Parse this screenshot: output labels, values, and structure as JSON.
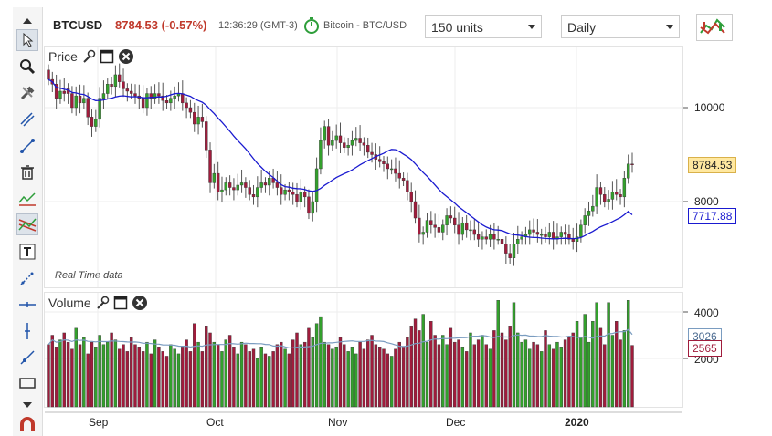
{
  "header": {
    "symbol": "BTCUSD",
    "price_change": "8784.53 (-0.57%)",
    "time": "12:36:29 (GMT-3)",
    "instrument": "Bitcoin - BTC/USD",
    "units_select": "150 units",
    "period_select": "Daily"
  },
  "toolbar": {
    "items": [
      "collapse-up",
      "pointer",
      "zoom",
      "tools",
      "parallel-lines",
      "line",
      "trash",
      "indicator",
      "channel",
      "text",
      "trendline",
      "horizontal-line",
      "vertical-line",
      "ray",
      "rectangle",
      "expand-down",
      "magnet"
    ]
  },
  "price_pane": {
    "title": "Price",
    "footnote": "Real Time data",
    "y_ticks": [
      "10000",
      "8000"
    ],
    "last_price_tag": "8784.53",
    "ma_tag": "7717.88"
  },
  "volume_pane": {
    "title": "Volume",
    "y_ticks": [
      "4000",
      "2000"
    ],
    "ma_tag": "3026",
    "last_volume_tag": "2565"
  },
  "x_axis": [
    "Sep",
    "Oct",
    "Nov",
    "Dec",
    "2020"
  ],
  "colors": {
    "up": "#33a02c",
    "down": "#a01c3c",
    "ma_price": "#1a1ad0",
    "ma_volume": "#7a9cc0",
    "price_change": "#c0392b"
  },
  "chart_data": {
    "type": "candlestick",
    "x_labels": [
      "Sep",
      "Oct",
      "Nov",
      "Dec",
      "2020"
    ],
    "y_range_price": [
      7000,
      11500
    ],
    "y_ticks_price": [
      10000,
      8000
    ],
    "close": [
      10600,
      10500,
      10200,
      10350,
      10300,
      10300,
      10000,
      10250,
      10100,
      10200,
      9800,
      9600,
      9750,
      10200,
      10300,
      10500,
      10450,
      10700,
      10550,
      10400,
      10350,
      10300,
      10250,
      10200,
      10000,
      10300,
      10200,
      10300,
      10250,
      10150,
      10100,
      10200,
      10250,
      10300,
      10100,
      10000,
      9900,
      9650,
      9800,
      9700,
      9100,
      8400,
      8600,
      8200,
      8250,
      8400,
      8300,
      8250,
      8350,
      8400,
      8300,
      8150,
      8100,
      8300,
      8400,
      8350,
      8500,
      8400,
      8300,
      8150,
      8250,
      8200,
      8150,
      8000,
      8200,
      8100,
      7750,
      8000,
      8700,
      9300,
      9600,
      9200,
      9300,
      9400,
      9250,
      9150,
      9200,
      9300,
      9350,
      9250,
      9200,
      9050,
      9000,
      8900,
      8850,
      8800,
      8700,
      8700,
      8600,
      8500,
      8450,
      8200,
      8000,
      7650,
      7300,
      7350,
      7600,
      7500,
      7450,
      7350,
      7500,
      7700,
      7650,
      7500,
      7300,
      7550,
      7400,
      7400,
      7300,
      7200,
      7250,
      7200,
      7300,
      7200,
      7200,
      7100,
      6900,
      6800,
      7100,
      7200,
      7250,
      7300,
      7400,
      7350,
      7300,
      7300,
      7250,
      7350,
      7200,
      7250,
      7350,
      7300,
      7200,
      7150,
      7250,
      7500,
      7700,
      7800,
      7900,
      8300,
      8150,
      8000,
      8050,
      8200,
      8150,
      8100,
      8500,
      8800,
      8784.53
    ],
    "open": [
      10800,
      10600,
      10500,
      10200,
      10350,
      10400,
      10300,
      10000,
      10250,
      10100,
      10200,
      9800,
      9600,
      9750,
      10200,
      10300,
      10500,
      10450,
      10700,
      10550,
      10400,
      10350,
      10300,
      10250,
      10200,
      10000,
      10300,
      10200,
      10300,
      10250,
      10150,
      10100,
      10200,
      10250,
      10300,
      10100,
      10000,
      9900,
      9650,
      9800,
      9700,
      9100,
      8400,
      8600,
      8200,
      8250,
      8400,
      8300,
      8250,
      8350,
      8400,
      8300,
      8150,
      8100,
      8300,
      8400,
      8350,
      8500,
      8400,
      8300,
      8150,
      8250,
      8200,
      8150,
      8000,
      8200,
      8100,
      7750,
      8000,
      8700,
      9300,
      9600,
      9200,
      9300,
      9400,
      9250,
      9150,
      9200,
      9300,
      9350,
      9250,
      9200,
      9050,
      9000,
      8900,
      8850,
      8800,
      8700,
      8700,
      8600,
      8500,
      8450,
      8200,
      8000,
      7650,
      7300,
      7350,
      7600,
      7500,
      7450,
      7350,
      7500,
      7700,
      7650,
      7500,
      7300,
      7550,
      7400,
      7400,
      7300,
      7200,
      7250,
      7200,
      7300,
      7200,
      7200,
      7100,
      6900,
      6800,
      7100,
      7200,
      7250,
      7300,
      7400,
      7350,
      7300,
      7300,
      7250,
      7350,
      7200,
      7250,
      7350,
      7300,
      7200,
      7150,
      7250,
      7500,
      7700,
      7800,
      7900,
      8300,
      8150,
      8000,
      8050,
      8200,
      8150,
      8100,
      8500,
      8800
    ],
    "volume": [
      2600,
      3000,
      2500,
      2800,
      3100,
      2700,
      2400,
      3300,
      2600,
      2900,
      2200,
      2700,
      2500,
      3000,
      2600,
      2700,
      3100,
      2800,
      2400,
      2600,
      2300,
      2900,
      2600,
      2500,
      2300,
      2700,
      2200,
      2800,
      2500,
      2300,
      2100,
      2600,
      2400,
      2200,
      2500,
      2800,
      2300,
      3500,
      2700,
      2300,
      3400,
      3100,
      2700,
      2600,
      2300,
      2800,
      3000,
      2500,
      2200,
      2700,
      2600,
      2300,
      2400,
      2000,
      2500,
      2200,
      2100,
      2300,
      2600,
      2700,
      2400,
      2200,
      2800,
      3100,
      2600,
      2700,
      3300,
      2900,
      3500,
      3800,
      2700,
      2600,
      2400,
      2500,
      2900,
      2600,
      2300,
      2500,
      2200,
      2700,
      2400,
      2800,
      3000,
      2600,
      2500,
      2400,
      2200,
      2100,
      2400,
      2700,
      2500,
      2900,
      3400,
      3700,
      3200,
      3900,
      2700,
      3600,
      3000,
      2600,
      3000,
      2600,
      3300,
      2700,
      2800,
      2500,
      2300,
      3100,
      2600,
      2800,
      3000,
      2600,
      2400,
      3200,
      4500,
      3100,
      2800,
      3400,
      4400,
      3100,
      2700,
      2800,
      2400,
      2700,
      2600,
      2300,
      3200,
      2600,
      2400,
      2700,
      2500,
      2800,
      2900,
      3100,
      3600,
      2900,
      3900,
      2700,
      3600,
      4400,
      3300,
      2600,
      4400,
      3000,
      3600,
      2800,
      3200,
      4500,
      2565
    ],
    "ma_price_endpoint": 7717.88,
    "y_range_volume": [
      0,
      5000
    ],
    "y_ticks_volume": [
      4000,
      2000
    ],
    "ma_volume_endpoint": 3026
  }
}
